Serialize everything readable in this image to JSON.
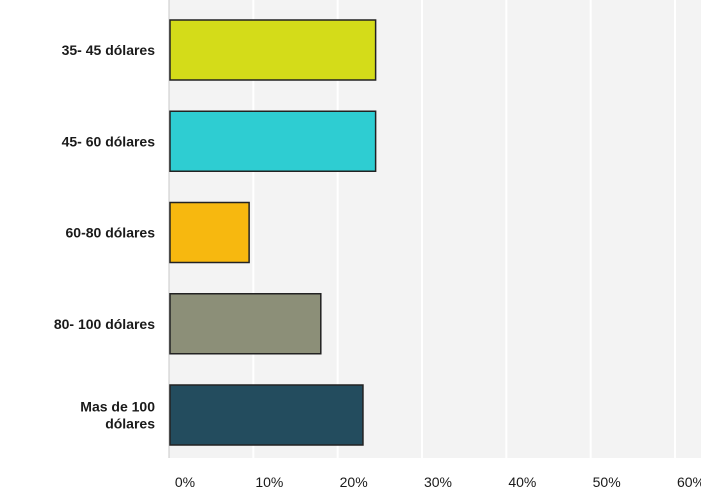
{
  "chart_data": {
    "type": "bar",
    "orientation": "horizontal",
    "title": "",
    "xlabel": "",
    "ylabel": "",
    "categories": [
      [
        "35- 45 dólares"
      ],
      [
        "45- 60 dólares"
      ],
      [
        "60-80 dólares"
      ],
      [
        "80- 100 dólares"
      ],
      [
        "Mas de 100",
        "dólares"
      ]
    ],
    "values": [
      24.5,
      24.5,
      9.5,
      18,
      23
    ],
    "value_unit": "%",
    "colors": [
      "#d4dc19",
      "#2ecdd2",
      "#f7b80f",
      "#8c8f78",
      "#234c5e"
    ],
    "xlim": [
      0,
      60
    ],
    "xticks": [
      0,
      10,
      20,
      30,
      40,
      50,
      60
    ],
    "xtick_labels": [
      "0%",
      "10%",
      "20%",
      "30%",
      "40%",
      "50%",
      "60%"
    ],
    "grid": true,
    "legend": "none",
    "plot_background": "#f3f3f3",
    "grid_color": "#ffffff",
    "bar_outline_color": "#222222"
  }
}
